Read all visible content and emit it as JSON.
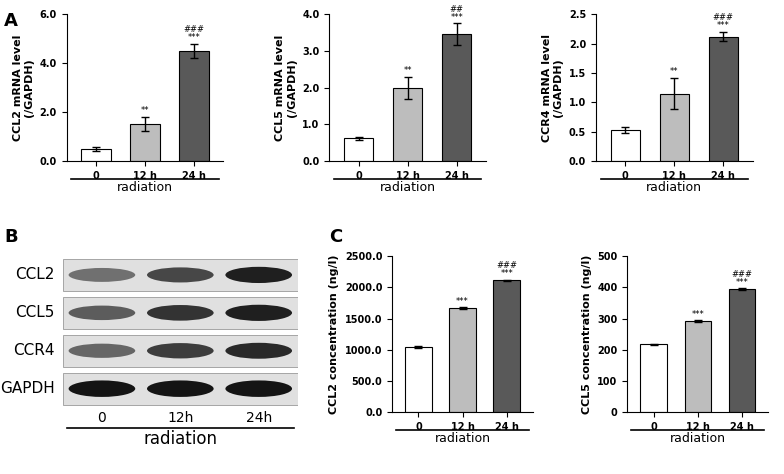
{
  "panel_labels": [
    "A",
    "B",
    "C"
  ],
  "chart_data": [
    {
      "type": "bar",
      "panel": "A",
      "ylabel": "CCL2 mRNA level\n(/GAPDH)",
      "xlabel": "radiation",
      "categories": [
        "0",
        "12 h",
        "24 h"
      ],
      "values": [
        0.48,
        1.52,
        4.5
      ],
      "errors": [
        0.08,
        0.3,
        0.3
      ],
      "colors": [
        "#ffffff",
        "#bdbdbd",
        "#595959"
      ],
      "ylim": [
        0.0,
        6.0
      ],
      "yticks": [
        0.0,
        2.0,
        4.0,
        6.0
      ],
      "annotations": [
        {
          "category": "12 h",
          "texts": [
            "**"
          ]
        },
        {
          "category": "24 h",
          "texts": [
            "###",
            "***"
          ]
        }
      ]
    },
    {
      "type": "bar",
      "panel": "A",
      "ylabel": "CCL5 mRNA level\n(/GAPDH)",
      "xlabel": "radiation",
      "categories": [
        "0",
        "12 h",
        "24 h"
      ],
      "values": [
        0.62,
        2.0,
        3.45
      ],
      "errors": [
        0.05,
        0.3,
        0.3
      ],
      "colors": [
        "#ffffff",
        "#bdbdbd",
        "#595959"
      ],
      "ylim": [
        0.0,
        4.0
      ],
      "yticks": [
        0.0,
        1.0,
        2.0,
        3.0,
        4.0
      ],
      "annotations": [
        {
          "category": "12 h",
          "texts": [
            "**"
          ]
        },
        {
          "category": "24 h",
          "texts": [
            "##",
            "***"
          ]
        }
      ]
    },
    {
      "type": "bar",
      "panel": "A",
      "ylabel": "CCR4 mRNA level\n(/GAPDH)",
      "xlabel": "radiation",
      "categories": [
        "0",
        "12 h",
        "24 h"
      ],
      "values": [
        0.53,
        1.15,
        2.12
      ],
      "errors": [
        0.05,
        0.27,
        0.08
      ],
      "colors": [
        "#ffffff",
        "#bdbdbd",
        "#595959"
      ],
      "ylim": [
        0.0,
        2.5
      ],
      "yticks": [
        0.0,
        0.5,
        1.0,
        1.5,
        2.0,
        2.5
      ],
      "annotations": [
        {
          "category": "12 h",
          "texts": [
            "**"
          ]
        },
        {
          "category": "24 h",
          "texts": [
            "###",
            "***"
          ]
        }
      ]
    },
    {
      "type": "bar",
      "panel": "C",
      "ylabel": "CCL2 concentration (ng/l)",
      "xlabel": "radiation",
      "categories": [
        "0",
        "12 h",
        "24 h"
      ],
      "values": [
        1050,
        1670,
        2110
      ],
      "errors": [
        15,
        15,
        10
      ],
      "colors": [
        "#ffffff",
        "#bdbdbd",
        "#595959"
      ],
      "ylim": [
        0.0,
        2500.0
      ],
      "yticks": [
        0.0,
        500.0,
        1000.0,
        1500.0,
        2000.0,
        2500.0
      ],
      "annotations": [
        {
          "category": "12 h",
          "texts": [
            "***"
          ]
        },
        {
          "category": "24 h",
          "texts": [
            "###",
            "***"
          ]
        }
      ]
    },
    {
      "type": "bar",
      "panel": "C",
      "ylabel": "CCL5 concentration (ng/l)",
      "xlabel": "radiation",
      "categories": [
        "0",
        "12 h",
        "24 h"
      ],
      "values": [
        218,
        292,
        393
      ],
      "errors": [
        2,
        3,
        3
      ],
      "colors": [
        "#ffffff",
        "#bdbdbd",
        "#595959"
      ],
      "ylim": [
        0,
        500
      ],
      "yticks": [
        0,
        100,
        200,
        300,
        400,
        500
      ],
      "annotations": [
        {
          "category": "12 h",
          "texts": [
            "***"
          ]
        },
        {
          "category": "24 h",
          "texts": [
            "###",
            "***"
          ]
        }
      ]
    }
  ],
  "blot": {
    "panel": "B",
    "rows": [
      "CCL2",
      "CCL5",
      "CCR4",
      "GAPDH"
    ],
    "lanes": [
      "0",
      "12h",
      "24h"
    ],
    "xlabel": "radiation",
    "band_intensity": [
      [
        0.45,
        0.65,
        0.85
      ],
      [
        0.55,
        0.75,
        0.85
      ],
      [
        0.5,
        0.7,
        0.8
      ],
      [
        0.9,
        0.9,
        0.9
      ]
    ]
  }
}
